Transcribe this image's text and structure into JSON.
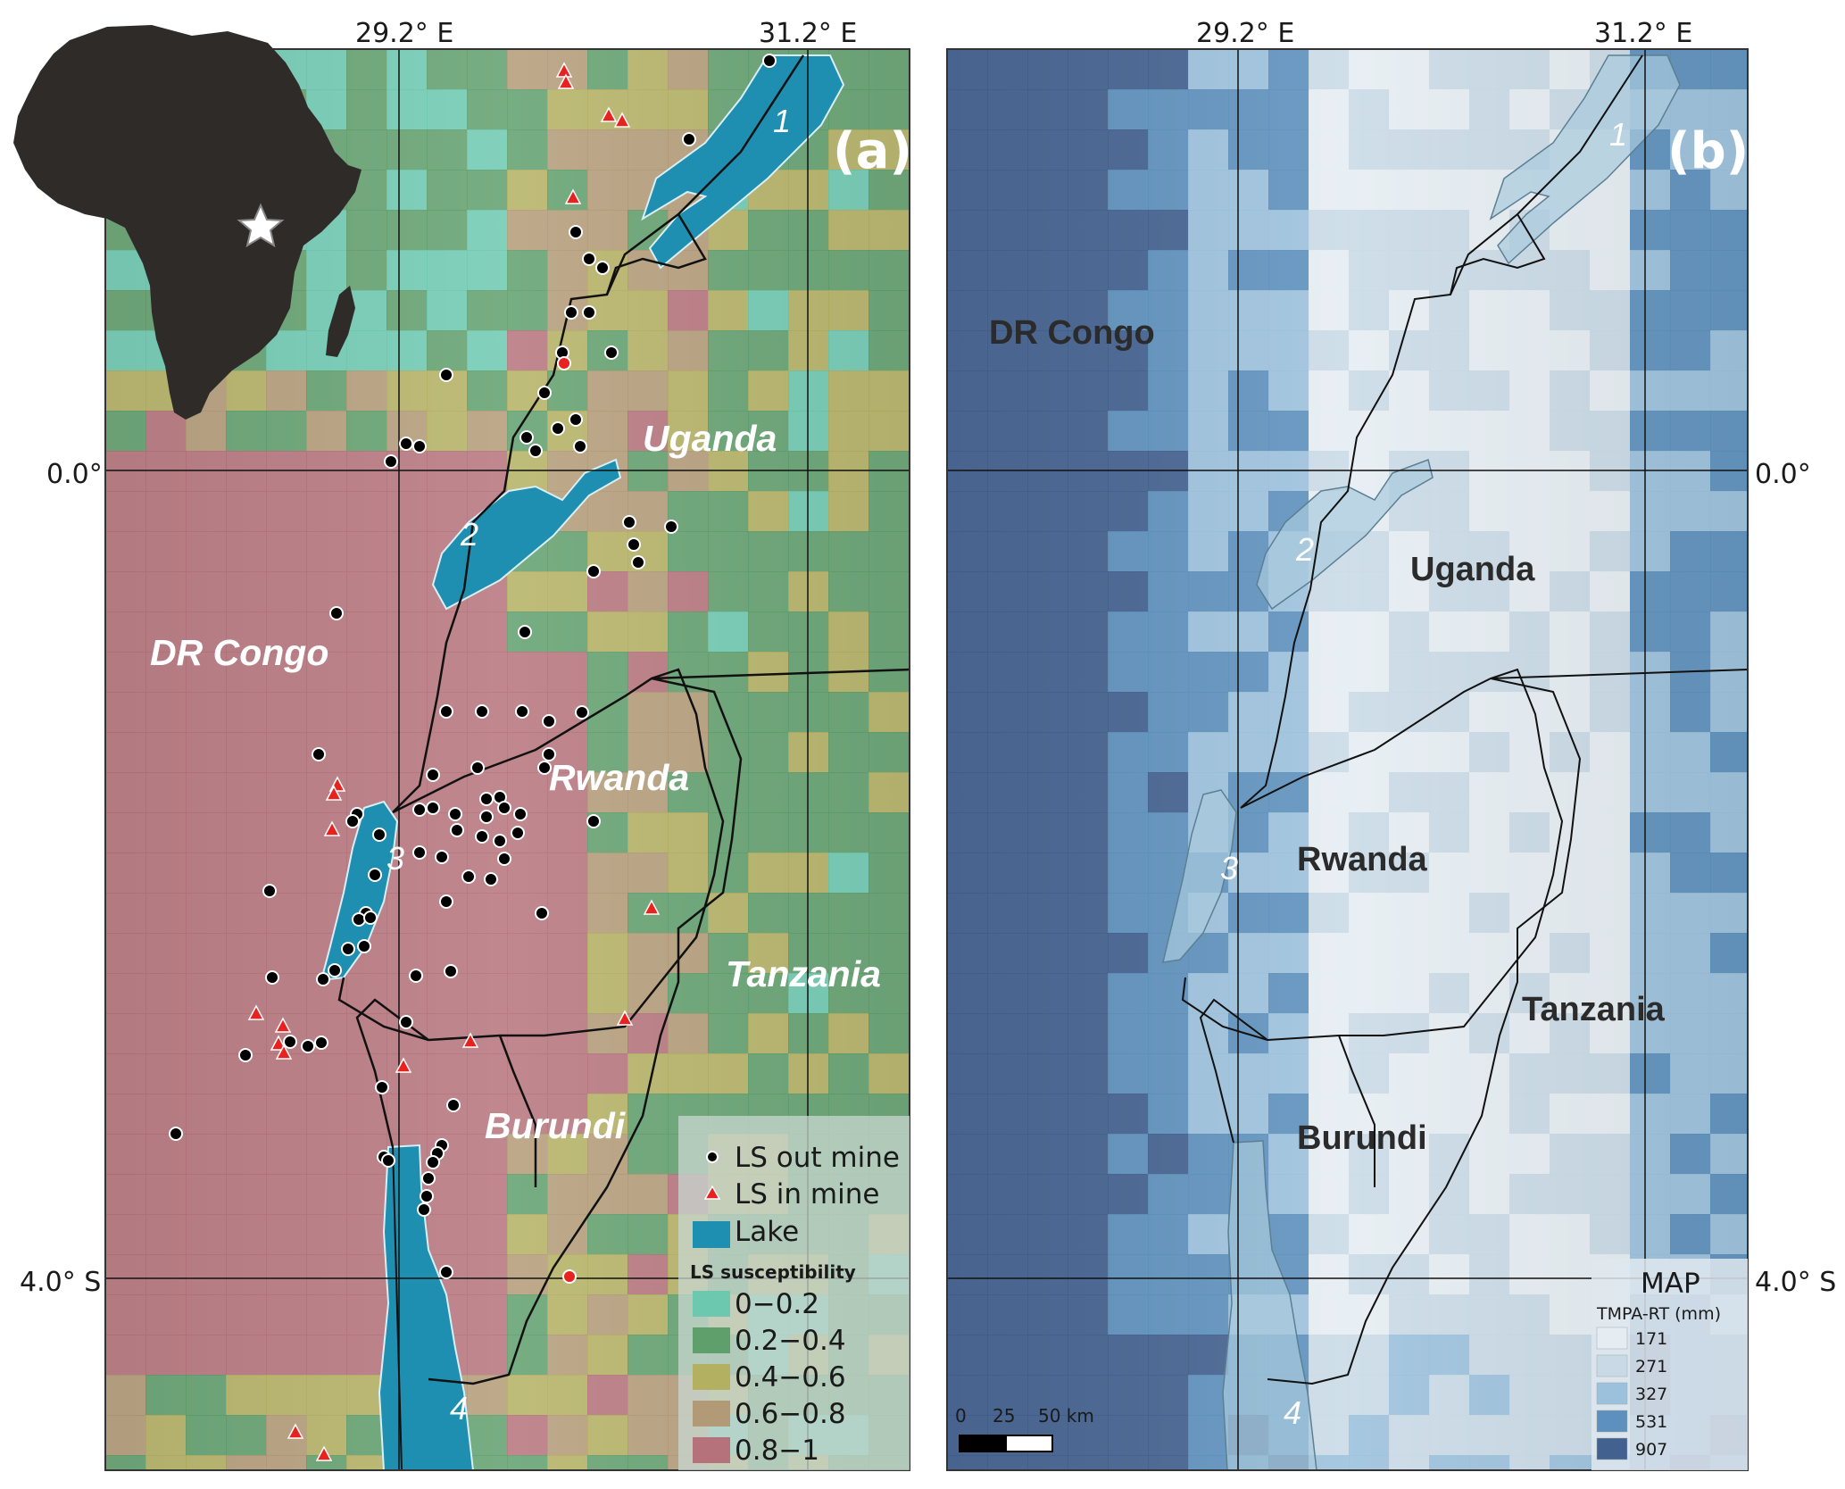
{
  "coordinates": {
    "lon_left": "29.2° E",
    "lon_right": "31.2° E",
    "lat_top": "0.0°",
    "lat_bottom": "4.0° S"
  },
  "panel_a": {
    "label": "(a)",
    "countries": {
      "drc": "DR Congo",
      "uganda": "Uganda",
      "rwanda": "Rwanda",
      "tanzania": "Tanzania",
      "burundi": "Burundi"
    },
    "lakes": [
      "1",
      "2",
      "3",
      "4"
    ],
    "legend": {
      "points": [
        {
          "label": "LS out mine",
          "symbol": "black-dot"
        },
        {
          "label": "LS in mine",
          "symbol": "red-triangle"
        },
        {
          "label": "Lake",
          "symbol": "blue-square"
        }
      ],
      "title": "LS susceptibility",
      "classes": [
        {
          "label": "0−0.2",
          "color": "#6cc9b0"
        },
        {
          "label": "0.2−0.4",
          "color": "#5f9f6b"
        },
        {
          "label": "0.4−0.6",
          "color": "#b4b062"
        },
        {
          "label": "0.6−0.8",
          "color": "#b29a77"
        },
        {
          "label": "0.8−1",
          "color": "#b5727a"
        }
      ]
    }
  },
  "panel_b": {
    "label": "(b)",
    "countries": {
      "drc": "DR Congo",
      "uganda": "Uganda",
      "rwanda": "Rwanda",
      "tanzania": "Tanzania",
      "burundi": "Burundi"
    },
    "lakes": [
      "1",
      "2",
      "3",
      "4"
    ],
    "scale": {
      "ticks": [
        "0",
        "25",
        "50 km"
      ]
    },
    "legend": {
      "title": "MAP",
      "subtitle": "TMPA-RT (mm)",
      "classes": [
        {
          "label": "171",
          "color": "#e6edf2"
        },
        {
          "label": "271",
          "color": "#c9dae6"
        },
        {
          "label": "327",
          "color": "#9cc1dc"
        },
        {
          "label": "531",
          "color": "#5d90bd"
        },
        {
          "label": "907",
          "color": "#42618f"
        }
      ]
    }
  },
  "inset": {
    "marker": "star-icon"
  }
}
